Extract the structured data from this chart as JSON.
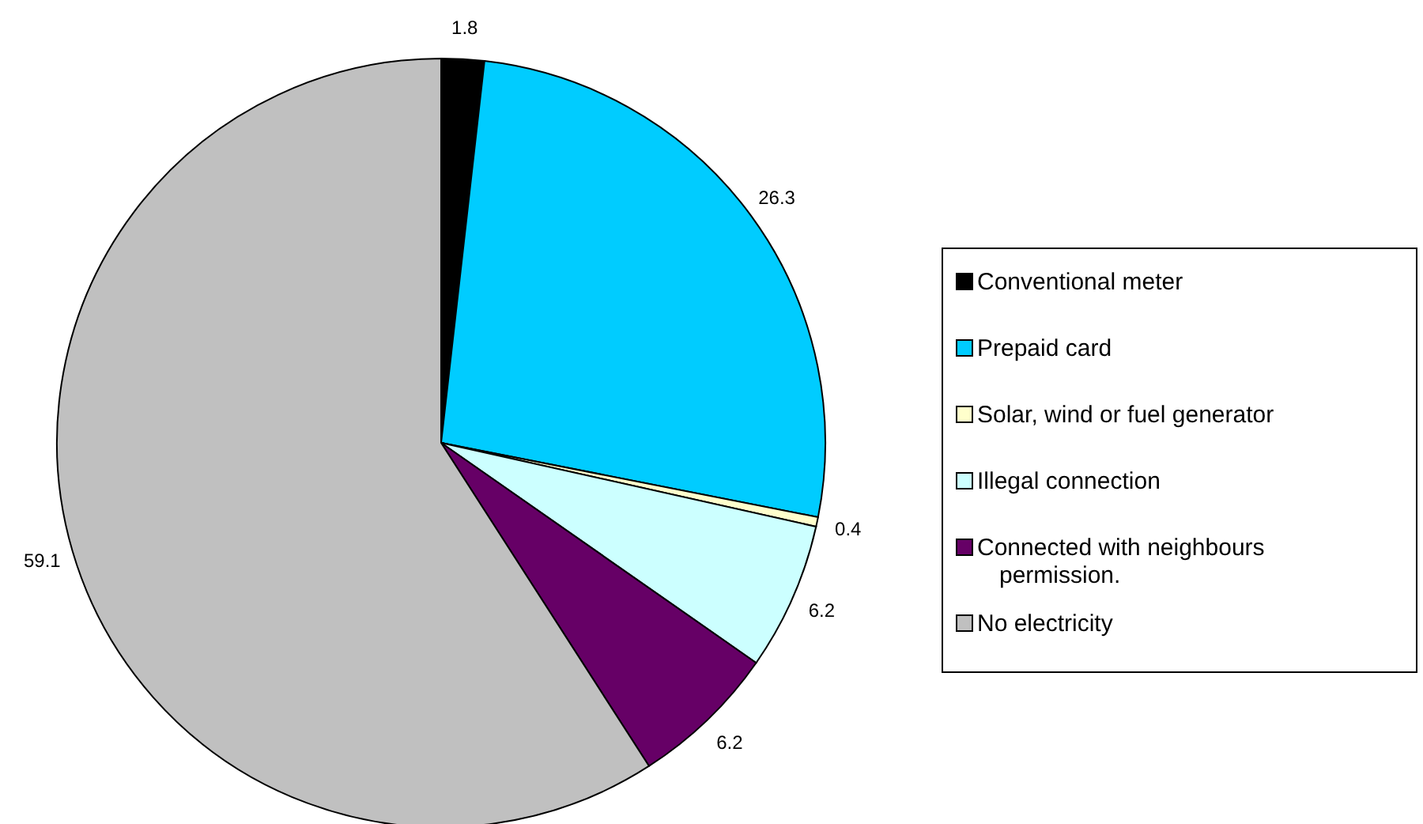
{
  "chart_data": {
    "type": "pie",
    "categories": [
      "Conventional meter",
      "Prepaid card",
      "Solar, wind or fuel generator",
      "Illegal connection",
      "Connected with neighbours permission.",
      "No electricity"
    ],
    "values": [
      1.8,
      26.3,
      0.4,
      6.2,
      6.2,
      59.1
    ],
    "colors": [
      "#000000",
      "#00ccff",
      "#ffffcc",
      "#ccffff",
      "#660066",
      "#c0c0c0"
    ],
    "data_labels": true,
    "legend": "right"
  }
}
